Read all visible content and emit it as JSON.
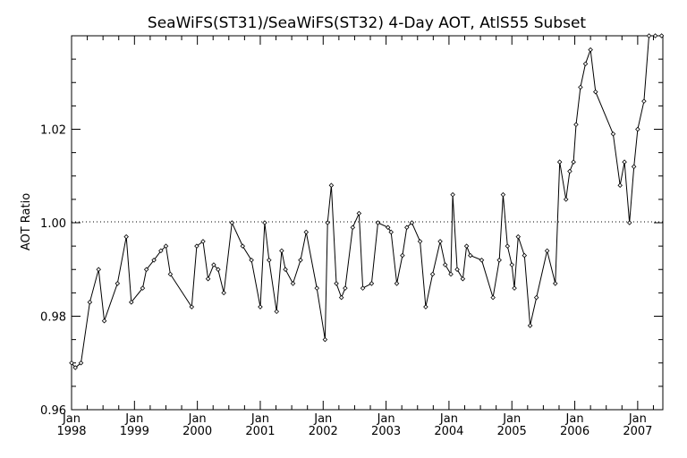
{
  "chart_data": {
    "type": "line",
    "title": "SeaWiFS(ST31)/SeaWiFS(ST32) 4-Day AOT, AtlS55 Subset",
    "xlabel": "",
    "ylabel": "AOT Ratio",
    "xlim": [
      1998.0,
      2007.4
    ],
    "ylim": [
      0.96,
      1.04
    ],
    "reference_line": 1.0,
    "grid": false,
    "y_ticks": [
      0.96,
      0.98,
      1.0,
      1.02
    ],
    "y_tick_labels": [
      "0.96",
      "0.98",
      "1.00",
      "1.02"
    ],
    "x_ticks": [
      {
        "month": "Jan",
        "year": "1998",
        "value": 1998
      },
      {
        "month": "Jan",
        "year": "1999",
        "value": 1999
      },
      {
        "month": "Jan",
        "year": "2000",
        "value": 2000
      },
      {
        "month": "Jan",
        "year": "2001",
        "value": 2001
      },
      {
        "month": "Jan",
        "year": "2002",
        "value": 2002
      },
      {
        "month": "Jan",
        "year": "2003",
        "value": 2003
      },
      {
        "month": "Jan",
        "year": "2004",
        "value": 2004
      },
      {
        "month": "Jan",
        "year": "2005",
        "value": 2005
      },
      {
        "month": "Jan",
        "year": "2006",
        "value": 2006
      },
      {
        "month": "Jan",
        "year": "2007",
        "value": 2007
      }
    ],
    "series": [
      {
        "x": [
          1998.0,
          1998.06,
          1998.15,
          1998.29,
          1998.43,
          1998.52,
          1998.73,
          1998.87,
          1998.95,
          1999.13,
          1999.19,
          1999.31,
          1999.42,
          1999.5,
          1999.57,
          1999.91,
          1999.99,
          2000.09,
          2000.17,
          2000.26,
          2000.33,
          2000.42,
          2000.55,
          2000.72,
          2000.86,
          2001.0,
          2001.07,
          2001.14,
          2001.26,
          2001.34,
          2001.4,
          2001.52,
          2001.64,
          2001.73,
          2001.9,
          2002.03,
          2002.07,
          2002.13,
          2002.21,
          2002.29,
          2002.35,
          2002.47,
          2002.57,
          2002.63,
          2002.77,
          2002.87,
          2003.03,
          2003.08,
          2003.17,
          2003.26,
          2003.33,
          2003.41,
          2003.54,
          2003.63,
          2003.74,
          2003.86,
          2003.94,
          2004.03,
          2004.06,
          2004.13,
          2004.22,
          2004.28,
          2004.34,
          2004.52,
          2004.7,
          2004.8,
          2004.86,
          2004.93,
          2005.0,
          2005.04,
          2005.1,
          2005.2,
          2005.29,
          2005.39,
          2005.56,
          2005.69,
          2005.76,
          2005.86,
          2005.92,
          2005.98,
          2006.02,
          2006.09,
          2006.17,
          2006.25,
          2006.33,
          2006.61,
          2006.72,
          2006.79,
          2006.87,
          2006.94,
          2007.0,
          2007.1,
          2007.18,
          2007.28,
          2007.38
        ],
        "y": [
          0.97,
          0.969,
          0.97,
          0.983,
          0.99,
          0.979,
          0.987,
          0.997,
          0.983,
          0.986,
          0.99,
          0.992,
          0.994,
          0.995,
          0.989,
          0.982,
          0.995,
          0.996,
          0.988,
          0.991,
          0.99,
          0.985,
          1.0,
          0.995,
          0.992,
          0.982,
          1.0,
          0.992,
          0.981,
          0.994,
          0.99,
          0.987,
          0.992,
          0.998,
          0.986,
          0.975,
          1.0,
          1.008,
          0.987,
          0.984,
          0.986,
          0.999,
          1.002,
          0.986,
          0.987,
          1.0,
          0.999,
          0.998,
          0.987,
          0.993,
          0.999,
          1.0,
          0.996,
          0.982,
          0.989,
          0.996,
          0.991,
          0.989,
          1.006,
          0.99,
          0.988,
          0.995,
          0.993,
          0.992,
          0.984,
          0.992,
          1.006,
          0.995,
          0.991,
          0.986,
          0.997,
          0.993,
          0.978,
          0.984,
          0.994,
          0.987,
          1.013,
          1.005,
          1.011,
          1.013,
          1.021,
          1.029,
          1.034,
          1.037,
          1.028,
          1.019,
          1.008,
          1.013,
          1.0,
          1.012,
          1.02,
          1.026,
          1.04,
          1.04,
          1.04
        ]
      }
    ]
  }
}
